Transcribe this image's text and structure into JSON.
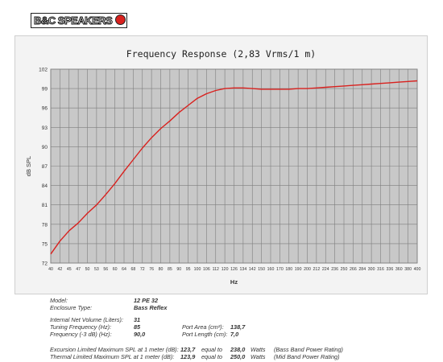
{
  "brand": {
    "logo_text": "B&C SPEAKERS",
    "logo_color": "#d9211e"
  },
  "chart_data": {
    "type": "line",
    "title": "Frequency Response (2,83 Vrms/1 m)",
    "xlabel": "Hz",
    "ylabel": "dB SPL",
    "ylim": [
      72,
      102
    ],
    "yticks": [
      72,
      75,
      78,
      81,
      84,
      87,
      90,
      93,
      96,
      99,
      102
    ],
    "xticks": [
      40,
      42,
      45,
      47,
      50,
      53,
      56,
      60,
      64,
      68,
      72,
      76,
      80,
      85,
      90,
      95,
      100,
      106,
      112,
      120,
      126,
      134,
      142,
      150,
      160,
      170,
      180,
      190,
      200,
      212,
      224,
      236,
      250,
      266,
      284,
      300,
      316,
      336,
      360,
      380,
      400
    ],
    "grid": true,
    "line_color": "#d9211e",
    "series": [
      {
        "values": [
          73.4,
          75.4,
          77.0,
          78.2,
          79.7,
          81.0,
          82.6,
          84.3,
          86.2,
          88.0,
          89.8,
          91.4,
          92.8,
          94.0,
          95.3,
          96.4,
          97.5,
          98.2,
          98.7,
          99.0,
          99.1,
          99.1,
          99.0,
          98.9,
          98.9,
          98.9,
          98.9,
          99.0,
          99.0,
          99.1,
          99.2,
          99.3,
          99.4,
          99.5,
          99.6,
          99.7,
          99.8,
          99.9,
          100.0,
          100.1,
          100.2
        ]
      }
    ]
  },
  "specs": {
    "model_label": "Model:",
    "model_value": "12 PE 32",
    "enclosure_label": "Enclosure Type:",
    "enclosure_value": "Bass Reflex",
    "volume_label": "Internal Net Volume (Liters):",
    "volume_value": "31",
    "tuning_label": "Tuning Frequency (Hz):",
    "tuning_value": "85",
    "port_area_label": "Port Area (cm²):",
    "port_area_value": "138,7",
    "freq3db_label": "Frequency (-3 dB) (Hz):",
    "freq3db_value": "90,0",
    "port_length_label": "Port Length (cm):",
    "port_length_value": "7,0",
    "excursion_label": "Excursion Limited Maximum SPL at 1 meter (dB):",
    "excursion_value": "123,7",
    "excursion_equal": "equal to",
    "excursion_watts": "238,0",
    "excursion_unit": "Watts",
    "excursion_note": "(Bass Band Power Rating)",
    "thermal_label": "Thermal Limited Maximum SPL at 1 meter (dB):",
    "thermal_value": "123,9",
    "thermal_equal": "equal to",
    "thermal_watts": "250,0",
    "thermal_unit": "Watts",
    "thermal_note": "(Mid Band Power Rating)"
  }
}
